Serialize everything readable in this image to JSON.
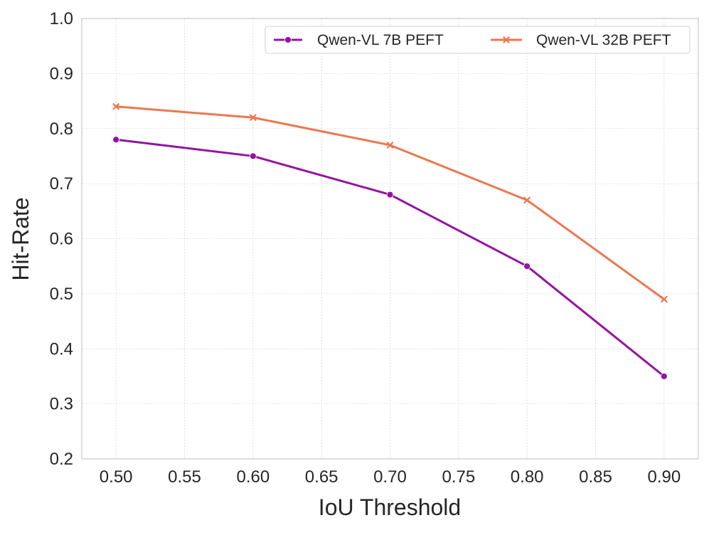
{
  "chart_data": {
    "type": "line",
    "title": "",
    "xlabel": "IoU Threshold",
    "ylabel": "Hit-Rate",
    "xlim": [
      0.475,
      0.925
    ],
    "ylim": [
      0.2,
      1.0
    ],
    "x": [
      0.5,
      0.6,
      0.7,
      0.8,
      0.9
    ],
    "xticks": [
      "0.50",
      "0.55",
      "0.60",
      "0.65",
      "0.70",
      "0.75",
      "0.80",
      "0.85",
      "0.90"
    ],
    "yticks": [
      "0.2",
      "0.3",
      "0.4",
      "0.5",
      "0.6",
      "0.7",
      "0.8",
      "0.9",
      "1.0"
    ],
    "grid": true,
    "legend_position": "top-right",
    "series": [
      {
        "name": "Qwen-VL 7B PEFT",
        "color": "#9414a0",
        "marker": "circle",
        "values": [
          0.78,
          0.75,
          0.68,
          0.55,
          0.35
        ]
      },
      {
        "name": "Qwen-VL 32B PEFT",
        "color": "#eb7850",
        "marker": "x",
        "values": [
          0.84,
          0.82,
          0.77,
          0.67,
          0.49
        ]
      }
    ]
  }
}
